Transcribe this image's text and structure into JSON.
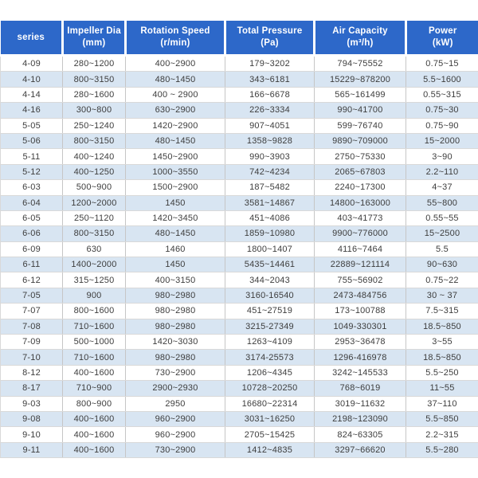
{
  "chart_data": {
    "type": "table",
    "title": "",
    "columns": [
      {
        "id": "series",
        "label": "series",
        "unit": ""
      },
      {
        "id": "impeller-dia",
        "label": "Impeller Dia",
        "unit": "(mm)"
      },
      {
        "id": "rotation-speed",
        "label": "Rotation Speed",
        "unit": "(r/min)"
      },
      {
        "id": "total-pressure",
        "label": "Total Pressure",
        "unit": "(Pa)"
      },
      {
        "id": "air-capacity",
        "label": "Air Capacity",
        "unit": "(m³/h)"
      },
      {
        "id": "power",
        "label": "Power",
        "unit": "(kW)"
      }
    ],
    "rows": [
      [
        "4-09",
        "280~1200",
        "400~2900",
        "179~3202",
        "794~75552",
        "0.75~15"
      ],
      [
        "4-10",
        "800~3150",
        "480~1450",
        "343~6181",
        "15229~878200",
        "5.5~1600"
      ],
      [
        "4-14",
        "280~1600",
        "400 ~ 2900",
        "166~6678",
        "565~161499",
        "0.55~315"
      ],
      [
        "4-16",
        "300~800",
        "630~2900",
        "226~3334",
        "990~41700",
        "0.75~30"
      ],
      [
        "5-05",
        "250~1240",
        "1420~2900",
        "907~4051",
        "599~76740",
        "0.75~90"
      ],
      [
        "5-06",
        "800~3150",
        "480~1450",
        "1358~9828",
        "9890~709000",
        "15~2000"
      ],
      [
        "5-11",
        "400~1240",
        "1450~2900",
        "990~3903",
        "2750~75330",
        "3~90"
      ],
      [
        "5-12",
        "400~1250",
        "1000~3550",
        "742~4234",
        "2065~67803",
        "2.2~110"
      ],
      [
        "6-03",
        "500~900",
        "1500~2900",
        "187~5482",
        "2240~17300",
        "4~37"
      ],
      [
        "6-04",
        "1200~2000",
        "1450",
        "3581~14867",
        "14800~163000",
        "55~800"
      ],
      [
        "6-05",
        "250~1120",
        "1420~3450",
        "451~4086",
        "403~41773",
        "0.55~55"
      ],
      [
        "6-06",
        "800~3150",
        "480~1450",
        "1859~10980",
        "9900~776000",
        "15~2500"
      ],
      [
        "6-09",
        "630",
        "1460",
        "1800~1407",
        "4116~7464",
        "5.5"
      ],
      [
        "6-11",
        "1400~2000",
        "1450",
        "5435~14461",
        "22889~121114",
        "90~630"
      ],
      [
        "6-12",
        "315~1250",
        "400~3150",
        "344~2043",
        "755~56902",
        "0.75~22"
      ],
      [
        "7-05",
        "900",
        "980~2980",
        "3160-16540",
        "2473-484756",
        "30 ~ 37"
      ],
      [
        "7-07",
        "800~1600",
        "980~2980",
        "451~27519",
        "173~100788",
        "7.5~315"
      ],
      [
        "7-08",
        "710~1600",
        "980~2980",
        "3215-27349",
        "1049-330301",
        "18.5~850"
      ],
      [
        "7-09",
        "500~1000",
        "1420~3030",
        "1263~4109",
        "2953~36478",
        "3~55"
      ],
      [
        "7-10",
        "710~1600",
        "980~2980",
        "3174-25573",
        "1296-416978",
        "18.5~850"
      ],
      [
        "8-12",
        "400~1600",
        "730~2900",
        "1206~4345",
        "3242~145533",
        "5.5~250"
      ],
      [
        "8-17",
        "710~900",
        "2900~2930",
        "10728~20250",
        "768~6019",
        "11~55"
      ],
      [
        "9-03",
        "800~900",
        "2950",
        "16680~22314",
        "3019~11632",
        "37~110"
      ],
      [
        "9-08",
        "400~1600",
        "960~2900",
        "3031~16250",
        "2198~123090",
        "5.5~850"
      ],
      [
        "9-10",
        "400~1600",
        "960~2900",
        "2705~15425",
        "824~63305",
        "2.2~315"
      ],
      [
        "9-11",
        "400~1600",
        "730~2900",
        "1412~4835",
        "3297~66620",
        "5.5~280"
      ]
    ],
    "layout": {
      "header_position": "top",
      "zebra_striping": true,
      "grid": true
    }
  },
  "colors": {
    "header_bg": "#2d68c9",
    "header_text": "#ffffff",
    "row_even_bg": "#d8e5f2",
    "row_odd_bg": "#ffffff",
    "cell_text": "#3d3d3d",
    "border_vertical": "#c6c6c6",
    "border_horizontal": "#d9d9d9",
    "page_bg": "#ffffff"
  }
}
